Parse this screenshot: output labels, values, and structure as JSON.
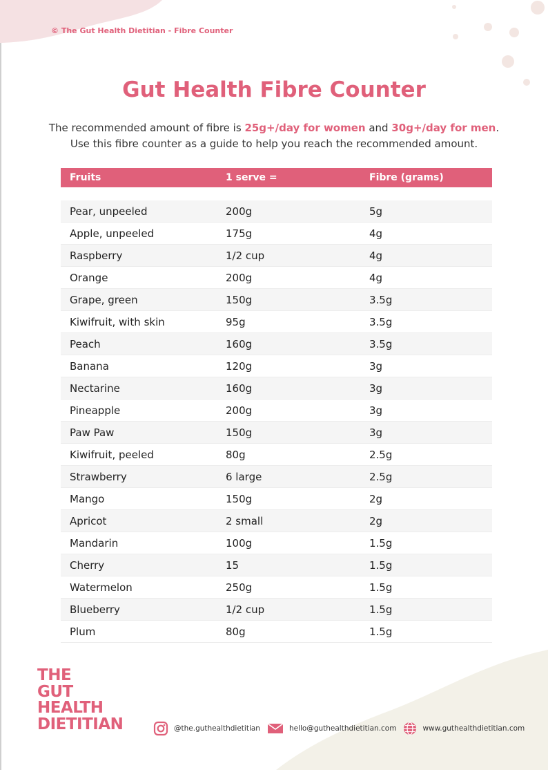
{
  "header": {
    "text": "© The Gut Health Dietitian - Fibre Counter"
  },
  "title": "Gut Health Fibre Counter",
  "intro": {
    "line1": [
      "The recommended amount of fibre is ",
      "25g+/day for women",
      " and ",
      "30g+/day for men",
      "."
    ],
    "line2": "Use this fibre counter as a guide to help you reach the recommended amount."
  },
  "table": {
    "columns": [
      "Fruits",
      "1 serve =",
      "Fibre (grams)"
    ],
    "rows": [
      [
        "Pear, unpeeled",
        "200g",
        "5g"
      ],
      [
        "Apple, unpeeled",
        "175g",
        "4g"
      ],
      [
        "Raspberry",
        "1/2 cup",
        "4g"
      ],
      [
        "Orange",
        "200g",
        "4g"
      ],
      [
        "Grape, green",
        "150g",
        "3.5g"
      ],
      [
        "Kiwifruit, with skin",
        "95g",
        "3.5g"
      ],
      [
        "Peach",
        "160g",
        "3.5g"
      ],
      [
        "Banana",
        "120g",
        "3g"
      ],
      [
        "Nectarine",
        "160g",
        "3g"
      ],
      [
        "Pineapple",
        "200g",
        "3g"
      ],
      [
        "Paw Paw",
        "150g",
        "3g"
      ],
      [
        "Kiwifruit, peeled",
        "80g",
        "2.5g"
      ],
      [
        "Strawberry",
        "6 large",
        "2.5g"
      ],
      [
        "Mango",
        "150g",
        "2g"
      ],
      [
        "Apricot",
        "2 small",
        "2g"
      ],
      [
        "Mandarin",
        "100g",
        "1.5g"
      ],
      [
        "Cherry",
        "15",
        "1.5g"
      ],
      [
        "Watermelon",
        "250g",
        "1.5g"
      ],
      [
        "Blueberry",
        "1/2 cup",
        "1.5g"
      ],
      [
        "Plum",
        "80g",
        "1.5g"
      ]
    ]
  },
  "logo": [
    "THE",
    "GUT",
    "HEALTH",
    "DIETITIAN"
  ],
  "footer": {
    "instagram": "@the.guthealthdietitian",
    "email": "hello@guthealthdietitian.com",
    "website": "www.guthealthdietitian.com"
  }
}
